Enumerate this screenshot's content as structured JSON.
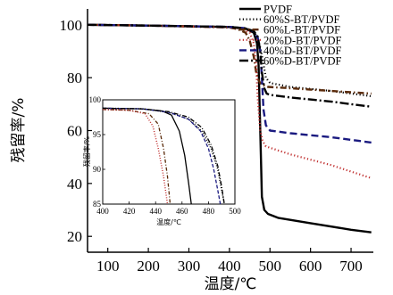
{
  "chart_data": {
    "type": "line",
    "title": "",
    "xlabel": "温度/℃",
    "ylabel": "残留率/%",
    "xlim": [
      50,
      755
    ],
    "ylim": [
      14,
      106
    ],
    "xticks": [
      "100",
      "200",
      "300",
      "400",
      "500",
      "600",
      "700"
    ],
    "yticks": [
      "20",
      "40",
      "60",
      "80",
      "100"
    ],
    "grid": false,
    "legend_position": "top-right",
    "series": [
      {
        "name": "PVDF",
        "color": "#000000",
        "dash": "solid",
        "x": [
          50,
          200,
          400,
          440,
          460,
          468,
          472,
          476,
          480,
          486,
          495,
          520,
          600,
          700,
          750
        ],
        "y": [
          100,
          99.7,
          99.2,
          98.6,
          97,
          93,
          85,
          60,
          35,
          30,
          28.5,
          27,
          25,
          22.5,
          21.5
        ]
      },
      {
        "name": "60%S-BT/PVDF",
        "color": "#000000",
        "dash": "dot",
        "x": [
          50,
          200,
          400,
          440,
          460,
          470,
          478,
          484,
          490,
          500,
          550,
          650,
          750
        ],
        "y": [
          100,
          99.7,
          99.2,
          98.6,
          97.5,
          95,
          90,
          85,
          80,
          78,
          76.5,
          75,
          73
        ]
      },
      {
        "name": "60%L-BT/PVDF",
        "color": "#5a2a0a",
        "dash": "dashdot",
        "x": [
          50,
          200,
          400,
          420,
          440,
          450,
          460,
          466,
          472,
          478,
          486,
          495,
          550,
          650,
          750
        ],
        "y": [
          100,
          99.7,
          99,
          98.4,
          97,
          94,
          88,
          82,
          79,
          77.5,
          77,
          76.5,
          76,
          75,
          74
        ]
      },
      {
        "name": "20%D-BT/PVDF",
        "color": "#c03030",
        "dash": "dot",
        "x": [
          50,
          200,
          400,
          430,
          450,
          460,
          466,
          470,
          476,
          482,
          490,
          550,
          650,
          750
        ],
        "y": [
          100,
          99.7,
          99,
          98.5,
          97,
          93,
          85,
          72,
          60,
          56,
          54,
          51,
          47,
          42
        ]
      },
      {
        "name": "40%D-BT/PVDF",
        "color": "#1a1a80",
        "dash": "dash",
        "x": [
          50,
          200,
          400,
          440,
          460,
          470,
          476,
          480,
          484,
          490,
          500,
          550,
          650,
          750
        ],
        "y": [
          100,
          99.7,
          99.2,
          98.7,
          97.5,
          95,
          90,
          80,
          68,
          62,
          60,
          59,
          57.5,
          55.5
        ]
      },
      {
        "name": "60%D-BT/PVDF",
        "color": "#000000",
        "dash": "longdashdot",
        "x": [
          50,
          200,
          400,
          440,
          460,
          470,
          476,
          480,
          486,
          492,
          500,
          550,
          650,
          750
        ],
        "y": [
          100,
          99.7,
          99.2,
          98.6,
          97.6,
          95.5,
          90,
          82,
          76,
          74,
          73.5,
          72.5,
          71,
          69
        ]
      }
    ],
    "inset": {
      "xlabel": "温度/℃",
      "ylabel": "残留率/%",
      "xlim": [
        400,
        500
      ],
      "ylim": [
        85,
        100
      ],
      "xticks": [
        "400",
        "420",
        "440",
        "460",
        "480",
        "500"
      ],
      "yticks": [
        "85",
        "90",
        "95",
        "100"
      ],
      "series": [
        {
          "name": "PVDF",
          "color": "#000000",
          "dash": "solid",
          "x": [
            400,
            430,
            445,
            452,
            458,
            462,
            465,
            467
          ],
          "y": [
            98.8,
            98.7,
            98.4,
            97.8,
            95.5,
            92,
            88,
            85
          ]
        },
        {
          "name": "60%S-BT/PVDF",
          "color": "#000000",
          "dash": "dot",
          "x": [
            400,
            430,
            450,
            465,
            475,
            482,
            487,
            490,
            492
          ],
          "y": [
            98.8,
            98.7,
            98.2,
            97.2,
            95.5,
            93,
            90,
            87,
            85
          ]
        },
        {
          "name": "60%L-BT/PVDF",
          "color": "#5a2a0a",
          "dash": "dashdot",
          "x": [
            400,
            420,
            435,
            442,
            446,
            449,
            451
          ],
          "y": [
            98.6,
            98.5,
            98,
            96.5,
            93,
            89,
            85
          ]
        },
        {
          "name": "20%D-BT/PVDF",
          "color": "#c03030",
          "dash": "dot",
          "x": [
            400,
            420,
            432,
            438,
            442,
            446,
            449
          ],
          "y": [
            98.6,
            98.5,
            98,
            96.2,
            93,
            89,
            85
          ]
        },
        {
          "name": "40%D-BT/PVDF",
          "color": "#1a1a80",
          "dash": "dash",
          "x": [
            400,
            430,
            450,
            465,
            474,
            480,
            484,
            487,
            489
          ],
          "y": [
            98.8,
            98.7,
            98.2,
            97.2,
            95.5,
            93,
            90,
            87,
            85
          ]
        },
        {
          "name": "60%D-BT/PVDF",
          "color": "#000000",
          "dash": "longdashdot",
          "x": [
            400,
            430,
            450,
            465,
            475,
            482,
            487,
            490,
            492
          ],
          "y": [
            98.8,
            98.7,
            98.3,
            97.5,
            96,
            93.5,
            90.5,
            87.5,
            85
          ]
        }
      ]
    }
  }
}
